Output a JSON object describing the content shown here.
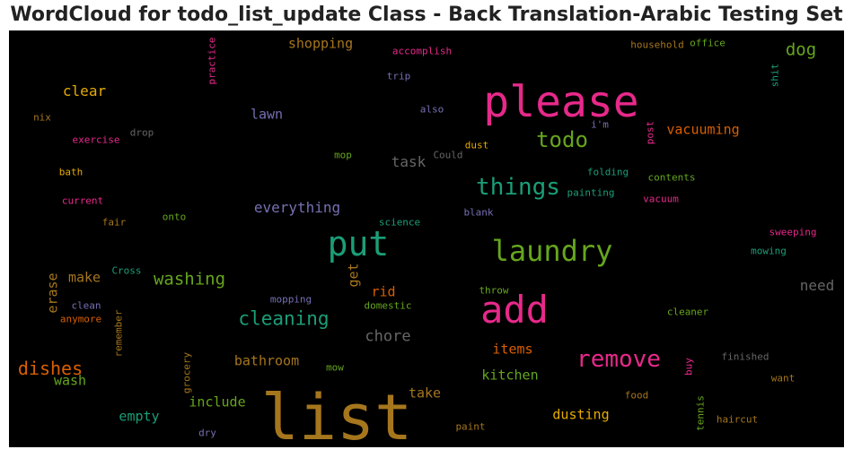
{
  "title": "WordCloud for todo_list_update Class - Back Translation-Arabic Testing Set",
  "colors": {
    "background": "#000000"
  },
  "words": [
    {
      "text": "list",
      "color": "#a6761d"
    },
    {
      "text": "please",
      "color": "#e7298a"
    },
    {
      "text": "add",
      "color": "#e7298a"
    },
    {
      "text": "put",
      "color": "#1b9e77"
    },
    {
      "text": "laundry",
      "color": "#66a61e"
    },
    {
      "text": "things",
      "color": "#1b9e77"
    },
    {
      "text": "todo",
      "color": "#66a61e"
    },
    {
      "text": "remove",
      "color": "#e7298a"
    },
    {
      "text": "cleaning",
      "color": "#1b9e77"
    },
    {
      "text": "dishes",
      "color": "#d95f02"
    },
    {
      "text": "washing",
      "color": "#66a61e"
    },
    {
      "text": "clear",
      "color": "#e6ab02"
    },
    {
      "text": "dog",
      "color": "#66a61e"
    },
    {
      "text": "shopping",
      "color": "#a6761d"
    },
    {
      "text": "everything",
      "color": "#7570b3"
    },
    {
      "text": "chore",
      "color": "#666666"
    },
    {
      "text": "items",
      "color": "#d95f02"
    },
    {
      "text": "kitchen",
      "color": "#66a61e"
    },
    {
      "text": "dusting",
      "color": "#e6ab02"
    },
    {
      "text": "bathroom",
      "color": "#a6761d"
    },
    {
      "text": "include",
      "color": "#66a61e"
    },
    {
      "text": "take",
      "color": "#a6761d"
    },
    {
      "text": "wash",
      "color": "#66a61e"
    },
    {
      "text": "empty",
      "color": "#1b9e77"
    },
    {
      "text": "make",
      "color": "#a6761d"
    },
    {
      "text": "task",
      "color": "#666666"
    },
    {
      "text": "lawn",
      "color": "#7570b3"
    },
    {
      "text": "vacuuming",
      "color": "#d95f02"
    },
    {
      "text": "need",
      "color": "#666666"
    },
    {
      "text": "rid",
      "color": "#d95f02"
    },
    {
      "text": "get",
      "color": "#a6761d"
    },
    {
      "text": "erase",
      "color": "#a6761d"
    },
    {
      "text": "practice",
      "color": "#e7298a"
    },
    {
      "text": "accomplish",
      "color": "#e7298a"
    },
    {
      "text": "trip",
      "color": "#7570b3"
    },
    {
      "text": "household",
      "color": "#a6761d"
    },
    {
      "text": "office",
      "color": "#66a61e"
    },
    {
      "text": "shit",
      "color": "#1b9e77"
    },
    {
      "text": "nix",
      "color": "#a6761d"
    },
    {
      "text": "drop",
      "color": "#666666"
    },
    {
      "text": "exercise",
      "color": "#e7298a"
    },
    {
      "text": "also",
      "color": "#7570b3"
    },
    {
      "text": "i'm",
      "color": "#7570b3"
    },
    {
      "text": "post",
      "color": "#e7298a"
    },
    {
      "text": "dust",
      "color": "#e6ab02"
    },
    {
      "text": "mop",
      "color": "#66a61e"
    },
    {
      "text": "Could",
      "color": "#666666"
    },
    {
      "text": "bath",
      "color": "#e6ab02"
    },
    {
      "text": "folding",
      "color": "#1b9e77"
    },
    {
      "text": "contents",
      "color": "#66a61e"
    },
    {
      "text": "painting",
      "color": "#1b9e77"
    },
    {
      "text": "vacuum",
      "color": "#e7298a"
    },
    {
      "text": "current",
      "color": "#e7298a"
    },
    {
      "text": "fair",
      "color": "#a6761d"
    },
    {
      "text": "onto",
      "color": "#66a61e"
    },
    {
      "text": "science",
      "color": "#1b9e77"
    },
    {
      "text": "blank",
      "color": "#7570b3"
    },
    {
      "text": "sweeping",
      "color": "#e7298a"
    },
    {
      "text": "mowing",
      "color": "#1b9e77"
    },
    {
      "text": "Cross",
      "color": "#1b9e77"
    },
    {
      "text": "mopping",
      "color": "#7570b3"
    },
    {
      "text": "clean",
      "color": "#7570b3"
    },
    {
      "text": "domestic",
      "color": "#66a61e"
    },
    {
      "text": "throw",
      "color": "#66a61e"
    },
    {
      "text": "anymore",
      "color": "#d95f02"
    },
    {
      "text": "remember",
      "color": "#a6761d"
    },
    {
      "text": "cleaner",
      "color": "#66a61e"
    },
    {
      "text": "grocery",
      "color": "#a6761d"
    },
    {
      "text": "mow",
      "color": "#66a61e"
    },
    {
      "text": "finished",
      "color": "#666666"
    },
    {
      "text": "buy",
      "color": "#e7298a"
    },
    {
      "text": "want",
      "color": "#a6761d"
    },
    {
      "text": "food",
      "color": "#a6761d"
    },
    {
      "text": "tennis",
      "color": "#66a61e"
    },
    {
      "text": "haircut",
      "color": "#a6761d"
    },
    {
      "text": "dry",
      "color": "#7570b3"
    },
    {
      "text": "paint",
      "color": "#a6761d"
    }
  ]
}
